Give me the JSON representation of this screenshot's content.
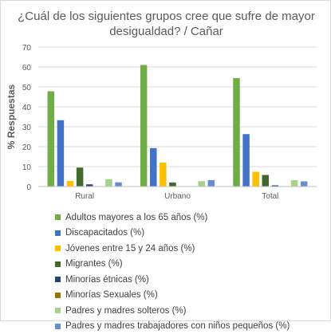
{
  "chart_data": {
    "type": "bar",
    "title": "¿Cuál de los siguientes grupos cree que sufre de mayor desigualdad? / Cañar",
    "xlabel": "",
    "ylabel": "% Respuestas",
    "ylim": [
      0,
      70
    ],
    "yticks": [
      0,
      10,
      20,
      30,
      40,
      50,
      60,
      70
    ],
    "grid": true,
    "legend_position": "bottom",
    "categories": [
      "Rural",
      "Urbano",
      "Total"
    ],
    "series": [
      {
        "name": "Adultos mayores a los 65 años (%)",
        "color": "#70ad47",
        "values": [
          47.8,
          61.0,
          54.4
        ]
      },
      {
        "name": "Discapacitados (%)",
        "color": "#4472c4",
        "values": [
          33.3,
          19.3,
          26.3
        ]
      },
      {
        "name": "Jóvenes entre 15 y 24 años (%)",
        "color": "#ffc000",
        "values": [
          2.8,
          12.0,
          7.4
        ]
      },
      {
        "name": "Migrantes (%)",
        "color": "#43682b",
        "values": [
          9.5,
          2.0,
          5.8
        ]
      },
      {
        "name": "Minorías étnicas (%)",
        "color": "#264478",
        "values": [
          1.1,
          0.0,
          0.6
        ]
      },
      {
        "name": "Minorías Sexuales (%)",
        "color": "#997300",
        "values": [
          0.0,
          0.0,
          0.0
        ]
      },
      {
        "name": "Padres y madres solteros (%)",
        "color": "#a9d18e",
        "values": [
          3.7,
          2.7,
          3.2
        ]
      },
      {
        "name": "Padres y madres trabajadores con niños pequeños (%)",
        "color": "#698ed0",
        "values": [
          2.1,
          3.2,
          2.6
        ]
      }
    ]
  }
}
